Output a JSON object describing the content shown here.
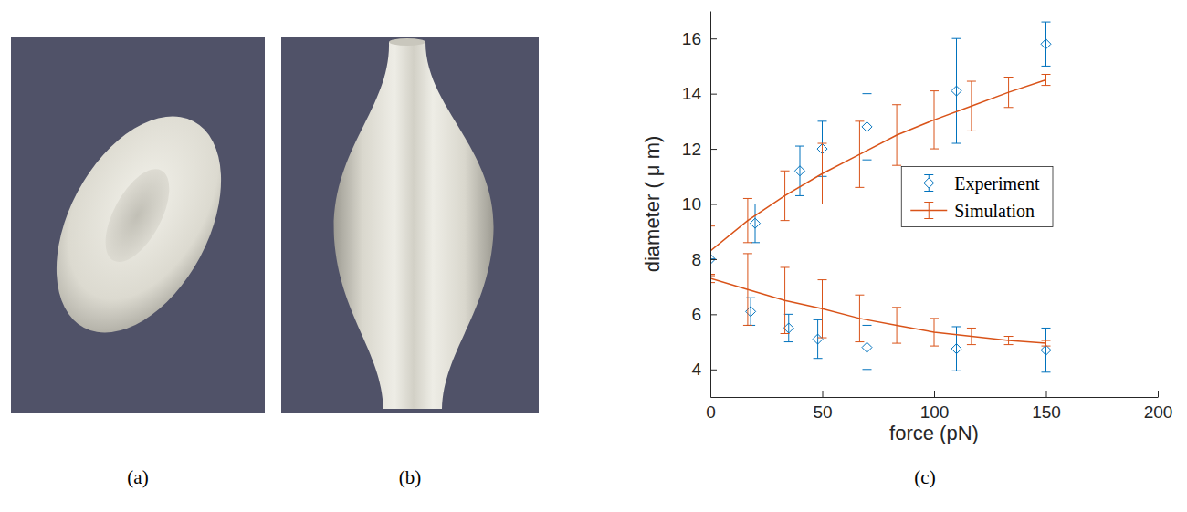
{
  "panel_labels": [
    "(a)",
    "(b)",
    "(c)"
  ],
  "chart_data": {
    "type": "line",
    "x_label": "force (pN)",
    "y_label": "diameter ( μ m)",
    "xlim": [
      0,
      200
    ],
    "xticks": [
      0,
      50,
      100,
      150,
      200
    ],
    "ylim": [
      3,
      17
    ],
    "yticks": [
      4,
      6,
      8,
      10,
      12,
      14,
      16
    ],
    "grid": false,
    "legend": "right",
    "series": [
      {
        "name": "Experiment",
        "color": "#0072bd",
        "type": "scatter",
        "marker": "diamond",
        "x": [
          0,
          20,
          40,
          50,
          70,
          110,
          150
        ],
        "values": [
          8.0,
          9.3,
          11.2,
          12.0,
          12.8,
          14.1,
          15.8
        ],
        "errors": [
          0,
          0.7,
          0.9,
          1.0,
          1.2,
          1.9,
          0.8
        ]
      },
      {
        "name": "Simulation",
        "color": "#d95319",
        "type": "line",
        "line_style": "solid",
        "x": [
          0,
          16.7,
          33.3,
          50,
          66.7,
          83.3,
          100,
          116.7,
          133.3,
          150
        ],
        "values": [
          8.3,
          9.4,
          10.3,
          11.1,
          11.8,
          12.5,
          13.05,
          13.55,
          14.05,
          14.5
        ],
        "errors": [
          0.9,
          0.8,
          0.9,
          1.1,
          1.2,
          1.1,
          1.05,
          0.9,
          0.55,
          0.2
        ]
      },
      {
        "name": "Experiment",
        "color": "#0072bd",
        "type": "scatter",
        "marker": "diamond",
        "x": [
          18,
          35,
          48,
          70,
          110,
          150
        ],
        "values": [
          6.1,
          5.5,
          5.1,
          4.8,
          4.75,
          4.7
        ],
        "errors": [
          0.5,
          0.5,
          0.7,
          0.8,
          0.8,
          0.8
        ]
      },
      {
        "name": "Simulation",
        "color": "#d95319",
        "type": "line",
        "line_style": "solid",
        "x": [
          0,
          16.7,
          33.3,
          50,
          66.7,
          83.3,
          100,
          116.7,
          133.3,
          150
        ],
        "values": [
          7.3,
          6.9,
          6.5,
          6.2,
          5.85,
          5.6,
          5.35,
          5.2,
          5.05,
          4.95
        ],
        "errors": [
          0.15,
          1.3,
          1.2,
          1.05,
          0.85,
          0.65,
          0.5,
          0.3,
          0.15,
          0.1
        ]
      }
    ]
  }
}
